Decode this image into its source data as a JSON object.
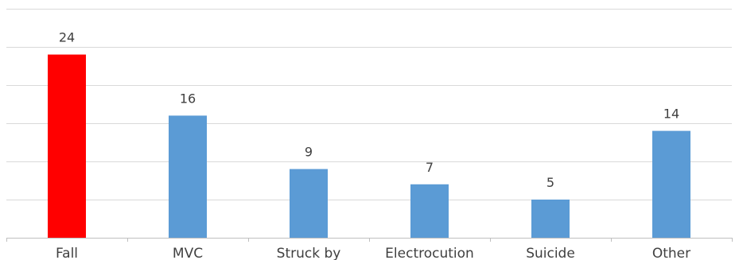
{
  "chart_data": {
    "type": "bar",
    "categories": [
      "Fall",
      "MVC",
      "Struck by",
      "Electrocution",
      "Suicide",
      "Other"
    ],
    "values": [
      24,
      16,
      9,
      7,
      5,
      14
    ],
    "bar_colors": [
      "#ff0000",
      "#5b9bd5",
      "#5b9bd5",
      "#5b9bd5",
      "#5b9bd5",
      "#5b9bd5"
    ],
    "ylim": [
      0,
      30
    ],
    "gridline_step": 5,
    "grid": true,
    "legend": "none",
    "title": "",
    "xlabel": "",
    "ylabel": ""
  }
}
